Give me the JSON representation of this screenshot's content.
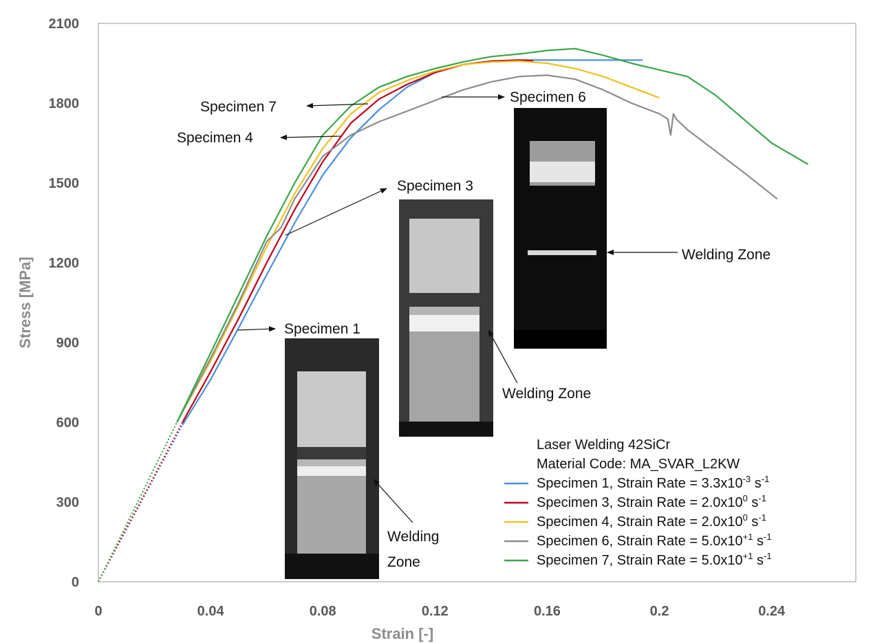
{
  "chart_data": {
    "type": "line",
    "title": "",
    "xlabel": "Strain [-]",
    "ylabel": "Stress [MPa]",
    "xlim": [
      0,
      0.27
    ],
    "ylim": [
      0,
      2100
    ],
    "x_ticks": [
      "0",
      "0.04",
      "0.08",
      "0.12",
      "0.16",
      "0.2",
      "0.24"
    ],
    "y_ticks": [
      "0",
      "300",
      "600",
      "900",
      "1200",
      "1500",
      "1800",
      "2100"
    ],
    "grid": false,
    "legend": {
      "placement": "bottom-right",
      "header": [
        "Laser Welding 42SiCr",
        "Material Code: MA_SVAR_L2KW"
      ],
      "entries": [
        {
          "label": "Specimen 1, Strain Rate = 3.3x10",
          "exp": "-3",
          "unit": " s",
          "unit_exp": "-1"
        },
        {
          "label": "Specimen 3, Strain Rate = 2.0x10",
          "exp": "0",
          "unit": " s",
          "unit_exp": "-1"
        },
        {
          "label": "Specimen 4, Strain Rate = 2.0x10",
          "exp": "0",
          "unit": " s",
          "unit_exp": "-1"
        },
        {
          "label": "Specimen 6, Strain Rate = 5.0x10",
          "exp": "+1",
          "unit": " s",
          "unit_exp": "-1"
        },
        {
          "label": "Specimen 7, Strain Rate = 5.0x10",
          "exp": "+1",
          "unit": " s",
          "unit_exp": "-1"
        }
      ]
    },
    "series": [
      {
        "color": "#4a90d9",
        "x": [
          0.03,
          0.04,
          0.05,
          0.06,
          0.07,
          0.08,
          0.09,
          0.1,
          0.11,
          0.12,
          0.13,
          0.14,
          0.15,
          0.16,
          0.17,
          0.18,
          0.194
        ],
        "y": [
          590,
          760,
          955,
          1155,
          1350,
          1530,
          1670,
          1775,
          1860,
          1915,
          1945,
          1958,
          1962,
          1962,
          1962,
          1962,
          1962
        ]
      },
      {
        "color": "#c0001a",
        "x": [
          0.03,
          0.04,
          0.05,
          0.06,
          0.07,
          0.08,
          0.09,
          0.1,
          0.11,
          0.12,
          0.13,
          0.14,
          0.15,
          0.155
        ],
        "y": [
          600,
          790,
          990,
          1200,
          1400,
          1580,
          1725,
          1815,
          1870,
          1915,
          1945,
          1958,
          1962,
          1960
        ]
      },
      {
        "color": "#f0c020",
        "x": [
          0.028,
          0.04,
          0.05,
          0.06,
          0.07,
          0.08,
          0.09,
          0.1,
          0.11,
          0.12,
          0.13,
          0.14,
          0.15,
          0.16,
          0.17,
          0.18,
          0.19,
          0.2
        ],
        "y": [
          600,
          830,
          1040,
          1260,
          1460,
          1630,
          1760,
          1840,
          1885,
          1920,
          1945,
          1955,
          1958,
          1950,
          1930,
          1900,
          1860,
          1820
        ]
      },
      {
        "color": "#8c8c8c",
        "x": [
          0.028,
          0.04,
          0.05,
          0.06,
          0.065,
          0.07,
          0.08,
          0.09,
          0.1,
          0.11,
          0.12,
          0.13,
          0.14,
          0.15,
          0.16,
          0.17,
          0.18,
          0.19,
          0.2,
          0.203,
          0.204,
          0.205,
          0.206,
          0.207,
          0.21,
          0.22,
          0.23,
          0.242
        ],
        "y": [
          600,
          840,
          1050,
          1280,
          1330,
          1440,
          1600,
          1680,
          1730,
          1770,
          1810,
          1850,
          1880,
          1900,
          1905,
          1890,
          1850,
          1800,
          1760,
          1740,
          1680,
          1760,
          1740,
          1730,
          1700,
          1620,
          1540,
          1440
        ]
      },
      {
        "color": "#3aa64a",
        "x": [
          0.028,
          0.04,
          0.05,
          0.06,
          0.07,
          0.08,
          0.09,
          0.1,
          0.11,
          0.12,
          0.13,
          0.14,
          0.15,
          0.16,
          0.17,
          0.18,
          0.19,
          0.2,
          0.21,
          0.22,
          0.23,
          0.24,
          0.253
        ],
        "y": [
          600,
          860,
          1080,
          1300,
          1500,
          1680,
          1790,
          1860,
          1900,
          1930,
          1955,
          1975,
          1985,
          1998,
          2005,
          1980,
          1950,
          1925,
          1900,
          1830,
          1740,
          1650,
          1570
        ]
      }
    ],
    "annotations": [
      {
        "text": "Specimen 7"
      },
      {
        "text": "Specimen 4"
      },
      {
        "text": "Specimen 6"
      },
      {
        "text": "Specimen 3"
      },
      {
        "text": "Specimen 1"
      },
      {
        "text": "Welding Zone"
      },
      {
        "text": "Welding Zone"
      },
      {
        "text": "Welding"
      },
      {
        "text": "Zone"
      }
    ]
  }
}
